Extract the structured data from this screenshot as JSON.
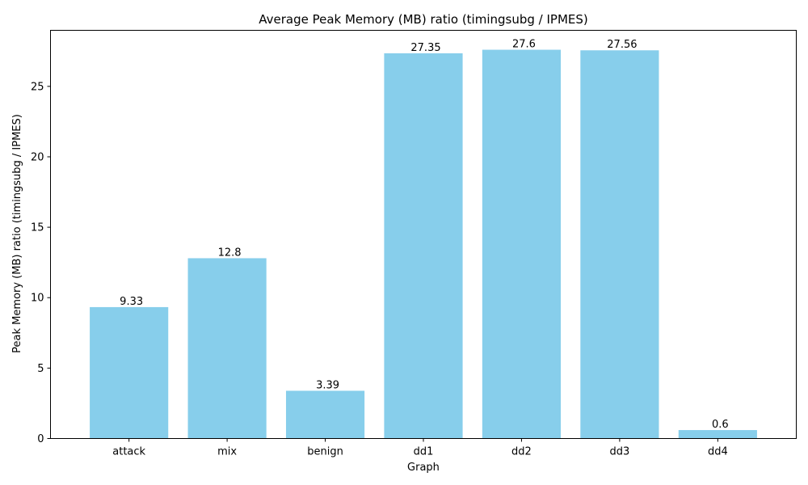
{
  "chart_data": {
    "type": "bar",
    "title": "Average Peak Memory (MB) ratio (timingsubg / IPMES)",
    "xlabel": "Graph",
    "ylabel": "Peak Memory (MB) ratio (timingsubg / IPMES)",
    "categories": [
      "attack",
      "mix",
      "benign",
      "dd1",
      "dd2",
      "dd3",
      "dd4"
    ],
    "values": [
      9.33,
      12.8,
      3.39,
      27.35,
      27.6,
      27.56,
      0.6
    ],
    "data_labels": [
      "9.33",
      "12.8",
      "3.39",
      "27.35",
      "27.6",
      "27.56",
      "0.6"
    ],
    "ylim": [
      0,
      28.98
    ],
    "yticks": [
      0,
      5,
      10,
      15,
      20,
      25
    ],
    "ytick_labels": [
      "0",
      "5",
      "10",
      "15",
      "20",
      "25"
    ],
    "bar_color": "#87ceeb",
    "grid": false,
    "legend": "none"
  }
}
